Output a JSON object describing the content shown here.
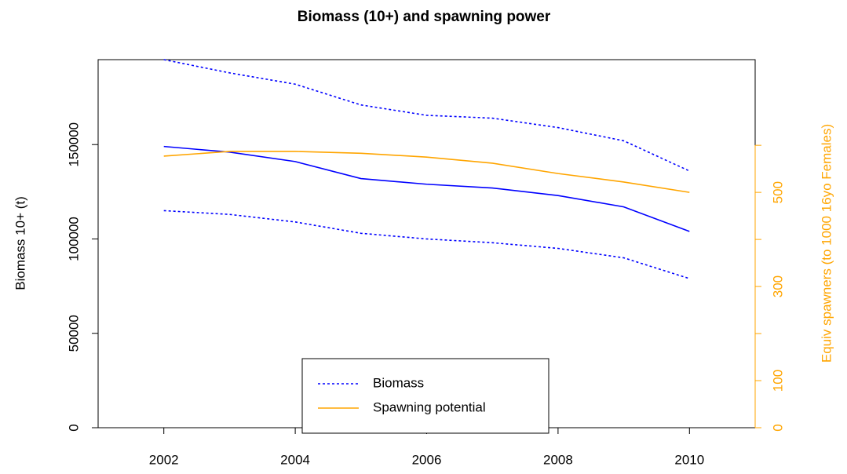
{
  "chart_data": {
    "type": "line",
    "title": "Biomass (10+) and spawning power",
    "ylabel": "Biomass 10+ (t)",
    "y2label": "Equiv spawners (to 1000 16yo Females)",
    "x": [
      2002,
      2003,
      2004,
      2005,
      2006,
      2007,
      2008,
      2009,
      2010
    ],
    "xlim": [
      2001,
      2011
    ],
    "xticks": [
      2002,
      2004,
      2006,
      2008,
      2010
    ],
    "ylim": [
      0,
      195000
    ],
    "yticks": [
      0,
      50000,
      100000,
      150000
    ],
    "y2lim": [
      0,
      782
    ],
    "y2ticks": [
      0,
      100,
      300,
      500
    ],
    "y2ticks_unlabeled": [
      200,
      400,
      600
    ],
    "y2color": "#ffa500",
    "series": [
      {
        "color": "#0000ff",
        "dash": false,
        "values": [
          149000,
          146000,
          141000,
          132000,
          129000,
          127000,
          123000,
          117000,
          104000
        ]
      },
      {
        "name": "Biomass",
        "color": "#0000ff",
        "dash": true,
        "values": [
          195000,
          188000,
          182000,
          171000,
          165500,
          164000,
          159000,
          152000,
          136000
        ]
      },
      {
        "color": "#0000ff",
        "dash": true,
        "values": [
          115000,
          113000,
          109000,
          103000,
          100000,
          98000,
          95000,
          90000,
          79000
        ]
      },
      {
        "name": "Spawning potential",
        "color": "#ffa500",
        "dash": false,
        "axis": "y2",
        "values": [
          577,
          587,
          587,
          583,
          575,
          562,
          540,
          522,
          500
        ]
      }
    ]
  }
}
